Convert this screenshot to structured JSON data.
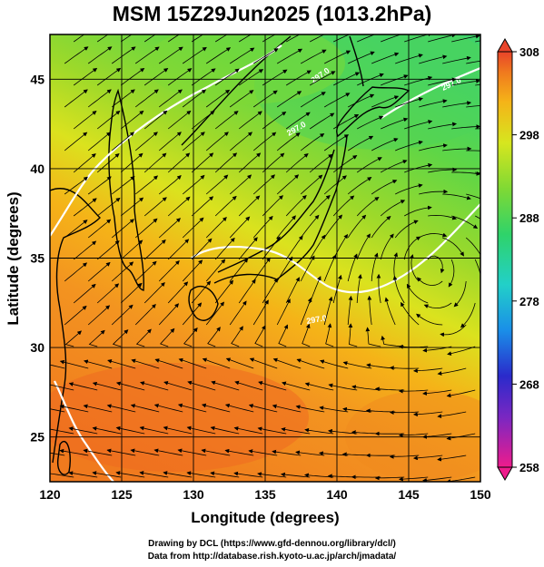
{
  "title": "MSM 15Z29Jun2025 (1013.2hPa)",
  "map": {
    "xlabel": "Longitude (degrees)",
    "ylabel": "Latitude  (degrees)",
    "lon_range": [
      120,
      150
    ],
    "lat_range": [
      22.5,
      47.5
    ],
    "lon_ticks": [
      "120",
      "125",
      "130",
      "135",
      "140",
      "145",
      "150"
    ],
    "lat_ticks": [
      "25",
      "30",
      "35",
      "40",
      "45"
    ],
    "grid": true,
    "contour_labels": [
      "297.0",
      "297.0",
      "297.0",
      "297.0"
    ]
  },
  "colorbar": {
    "ticks": [
      "308",
      "298",
      "288",
      "278",
      "268",
      "258"
    ],
    "range": [
      258,
      308
    ],
    "colors": [
      "#ee1c8c",
      "#2a2acb",
      "#1a8fe8",
      "#22d0c8",
      "#2fd36a",
      "#7fd934",
      "#d6e61f",
      "#f5b318",
      "#f07a1e",
      "#e8442a"
    ]
  },
  "footer": {
    "line1": "Drawing by DCL (https://www.gfd-dennou.org/library/dcl/)",
    "line2": "Data from http://database.rish.kyoto-u.ac.jp/arch/jmadata/"
  }
}
